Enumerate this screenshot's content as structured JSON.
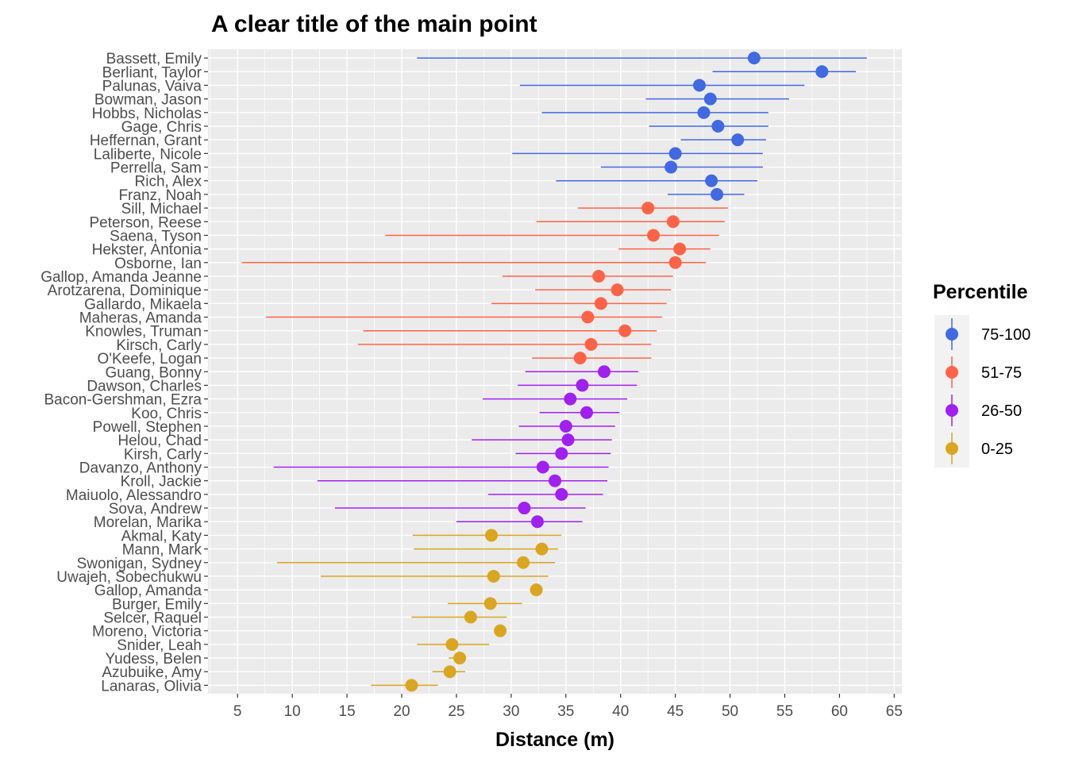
{
  "chart_data": {
    "type": "scatter",
    "title": "A clear title of the main point",
    "xlabel": "Distance (m)",
    "ylabel": "",
    "xlim": [
      2.3,
      65.7
    ],
    "x_ticks": [
      5,
      10,
      15,
      20,
      25,
      30,
      35,
      40,
      45,
      50,
      55,
      60,
      65
    ],
    "grid": true,
    "legend": {
      "title": "Percentile",
      "position": "right",
      "entries": [
        {
          "label": "75-100",
          "color": "#4169E1"
        },
        {
          "label": "51-75",
          "color": "#FF6347"
        },
        {
          "label": "26-50",
          "color": "#A020F0"
        },
        {
          "label": "0-25",
          "color": "#DAA520"
        }
      ]
    },
    "series": [
      {
        "name": "75-100",
        "color": "#4169E1",
        "points": [
          {
            "name": "Bassett, Emily",
            "value": 52.2,
            "low": 21.4,
            "high": 62.5
          },
          {
            "name": "Berliant, Taylor",
            "value": 58.4,
            "low": 48.4,
            "high": 61.5
          },
          {
            "name": "Palunas, Vaiva",
            "value": 47.2,
            "low": 30.8,
            "high": 56.8
          },
          {
            "name": "Bowman, Jason",
            "value": 48.2,
            "low": 42.3,
            "high": 55.4
          },
          {
            "name": "Hobbs, Nicholas",
            "value": 47.6,
            "low": 32.8,
            "high": 53.5
          },
          {
            "name": "Gage, Chris",
            "value": 48.9,
            "low": 42.6,
            "high": 53.5
          },
          {
            "name": "Heffernan, Grant",
            "value": 50.7,
            "low": 45.5,
            "high": 53.3
          },
          {
            "name": "Laliberte, Nicole",
            "value": 45.0,
            "low": 30.1,
            "high": 53.0
          },
          {
            "name": "Perrella, Sam",
            "value": 44.6,
            "low": 38.2,
            "high": 53.0
          },
          {
            "name": "Rich, Alex",
            "value": 48.3,
            "low": 34.1,
            "high": 52.5
          },
          {
            "name": "Franz, Noah",
            "value": 48.8,
            "low": 44.3,
            "high": 51.3
          }
        ]
      },
      {
        "name": "51-75",
        "color": "#FF6347",
        "points": [
          {
            "name": "Sill, Michael",
            "value": 42.5,
            "low": 36.1,
            "high": 49.8
          },
          {
            "name": "Peterson, Reese",
            "value": 44.8,
            "low": 32.3,
            "high": 49.5
          },
          {
            "name": "Saena, Tyson",
            "value": 43.0,
            "low": 18.5,
            "high": 49.0
          },
          {
            "name": "Hekster, Antonia",
            "value": 45.4,
            "low": 39.8,
            "high": 48.2
          },
          {
            "name": "Osborne, Ian",
            "value": 45.0,
            "low": 5.4,
            "high": 47.8
          },
          {
            "name": "Gallop, Amanda Jeanne",
            "value": 38.0,
            "low": 29.2,
            "high": 44.8
          },
          {
            "name": "Arotzarena, Dominique",
            "value": 39.7,
            "low": 32.2,
            "high": 44.6
          },
          {
            "name": "Gallardo, Mikaela",
            "value": 38.2,
            "low": 28.2,
            "high": 44.2
          },
          {
            "name": "Maheras, Amanda",
            "value": 37.0,
            "low": 7.6,
            "high": 43.8
          },
          {
            "name": "Knowles, Truman",
            "value": 40.4,
            "low": 16.5,
            "high": 43.3
          },
          {
            "name": "Kirsch, Carly",
            "value": 37.3,
            "low": 16.0,
            "high": 42.8
          },
          {
            "name": "O'Keefe, Logan",
            "value": 36.3,
            "low": 31.9,
            "high": 42.8
          }
        ]
      },
      {
        "name": "26-50",
        "color": "#A020F0",
        "points": [
          {
            "name": "Guang, Bonny",
            "value": 38.5,
            "low": 31.3,
            "high": 41.6
          },
          {
            "name": "Dawson, Charles",
            "value": 36.5,
            "low": 30.6,
            "high": 41.5
          },
          {
            "name": "Bacon-Gershman, Ezra",
            "value": 35.4,
            "low": 27.4,
            "high": 40.6
          },
          {
            "name": "Koo, Chris",
            "value": 36.9,
            "low": 32.6,
            "high": 39.9
          },
          {
            "name": "Powell, Stephen",
            "value": 35.0,
            "low": 30.7,
            "high": 39.5
          },
          {
            "name": "Helou, Chad",
            "value": 35.2,
            "low": 26.4,
            "high": 39.2
          },
          {
            "name": "Kirsh, Carly",
            "value": 34.6,
            "low": 30.4,
            "high": 39.1
          },
          {
            "name": "Davanzo, Anthony",
            "value": 32.9,
            "low": 8.3,
            "high": 38.9
          },
          {
            "name": "Kroll, Jackie",
            "value": 34.0,
            "low": 12.3,
            "high": 38.8
          },
          {
            "name": "Maiuolo, Alessandro",
            "value": 34.6,
            "low": 27.9,
            "high": 38.4
          },
          {
            "name": "Sova, Andrew",
            "value": 31.2,
            "low": 13.9,
            "high": 36.8
          },
          {
            "name": "Morelan, Marika",
            "value": 32.4,
            "low": 25.0,
            "high": 36.5
          }
        ]
      },
      {
        "name": "0-25",
        "color": "#DAA520",
        "points": [
          {
            "name": "Akmal, Katy",
            "value": 28.2,
            "low": 21.0,
            "high": 34.6
          },
          {
            "name": "Mann, Mark",
            "value": 32.8,
            "low": 21.1,
            "high": 34.3
          },
          {
            "name": "Swonigan, Sydney",
            "value": 31.1,
            "low": 8.6,
            "high": 34.0
          },
          {
            "name": "Uwajeh, Sobechukwu",
            "value": 28.4,
            "low": 12.6,
            "high": 33.4
          },
          {
            "name": "Gallop, Amanda",
            "value": 32.3,
            "low": 32.3,
            "high": 32.3
          },
          {
            "name": "Burger, Emily",
            "value": 28.1,
            "low": 24.2,
            "high": 31.0
          },
          {
            "name": "Selcer, Raquel",
            "value": 26.3,
            "low": 20.9,
            "high": 29.6
          },
          {
            "name": "Moreno, Victoria",
            "value": 29.0,
            "low": 29.0,
            "high": 29.0
          },
          {
            "name": "Snider, Leah",
            "value": 24.6,
            "low": 21.4,
            "high": 28.0
          },
          {
            "name": "Yudess, Belen",
            "value": 25.3,
            "low": 24.3,
            "high": 25.5
          },
          {
            "name": "Azubuike, Amy",
            "value": 24.4,
            "low": 22.8,
            "high": 25.8
          },
          {
            "name": "Lanaras, Olivia",
            "value": 20.9,
            "low": 17.2,
            "high": 23.3
          }
        ]
      }
    ]
  }
}
